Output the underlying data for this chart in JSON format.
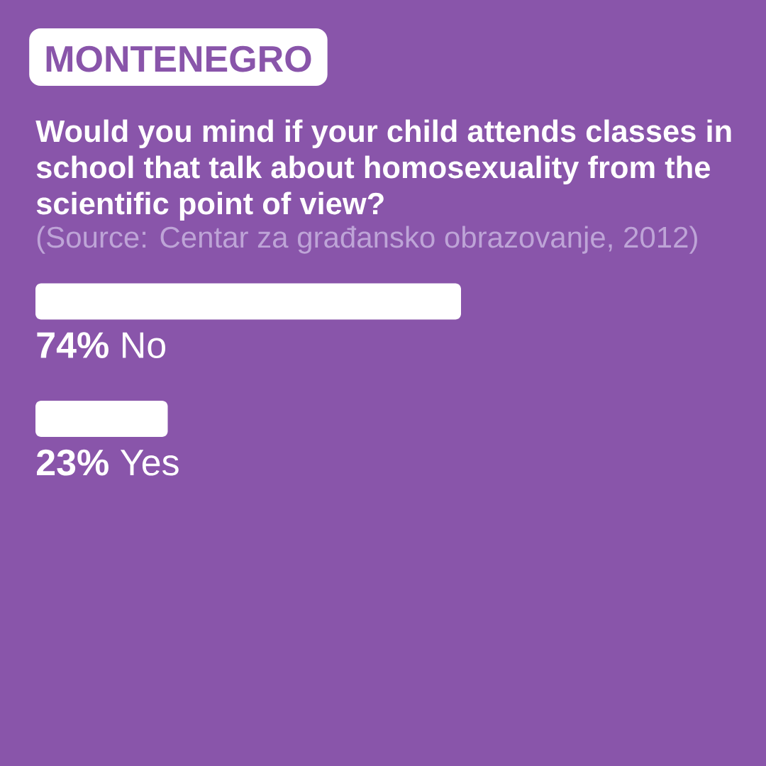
{
  "chart_data": {
    "type": "bar",
    "orientation": "horizontal",
    "title": "MONTENEGRO",
    "subtitle": "Would you mind if your child attends classes in school that talk about homosexuality from the scientific point of view?",
    "annotations": [
      "(Source: Centar za građansko obrazovanje, 2012)"
    ],
    "categories": [
      "No",
      "Yes"
    ],
    "values": [
      74,
      23
    ],
    "value_labels": [
      "74%",
      "23%"
    ],
    "color": "#ffffff"
  }
}
